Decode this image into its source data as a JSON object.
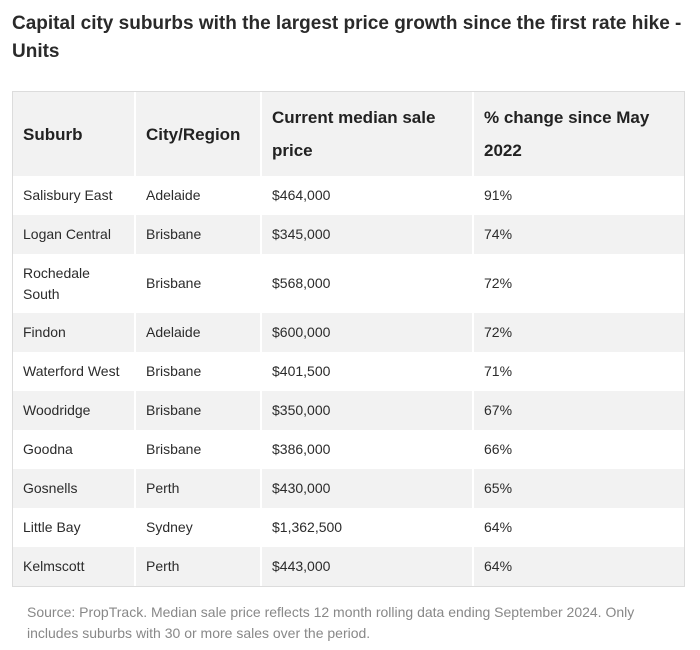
{
  "title": "Capital city suburbs with the largest price growth since the first rate hike - Units",
  "table": {
    "headers": [
      "Suburb",
      "City/Region",
      "Current median sale price",
      "% change since May 2022"
    ],
    "rows": [
      [
        "Salisbury East",
        "Adelaide",
        "$464,000",
        "91%"
      ],
      [
        "Logan Central",
        "Brisbane",
        "$345,000",
        "74%"
      ],
      [
        "Rochedale South",
        "Brisbane",
        "$568,000",
        "72%"
      ],
      [
        "Findon",
        "Adelaide",
        "$600,000",
        "72%"
      ],
      [
        "Waterford West",
        "Brisbane",
        "$401,500",
        "71%"
      ],
      [
        "Woodridge",
        "Brisbane",
        "$350,000",
        "67%"
      ],
      [
        "Goodna",
        "Brisbane",
        "$386,000",
        "66%"
      ],
      [
        "Gosnells",
        "Perth",
        "$430,000",
        "65%"
      ],
      [
        "Little Bay",
        "Sydney",
        "$1,362,500",
        "64%"
      ],
      [
        "Kelmscott",
        "Perth",
        "$443,000",
        "64%"
      ]
    ]
  },
  "source": "Source: PropTrack. Median sale price reflects 12 month rolling data ending September 2024. Only includes suburbs with 30 or more sales over the period.",
  "colors": {
    "header_bg": "#f2f2f2",
    "stripe_bg": "#f2f2f2",
    "source_text": "#888888"
  }
}
